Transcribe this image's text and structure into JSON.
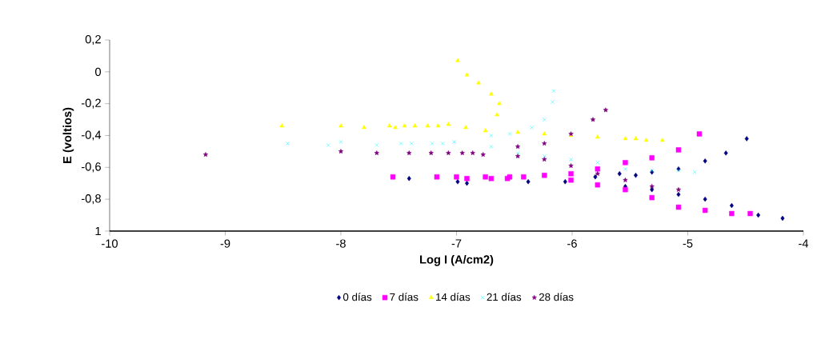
{
  "chart_data": {
    "type": "scatter",
    "xlabel": "Log I (A/cm2)",
    "ylabel": "E (voltios)",
    "xlim": [
      -10,
      -4
    ],
    "xticks": [
      -10,
      -9,
      -8,
      -7,
      -6,
      -5,
      -4
    ],
    "ylim": [
      -1,
      0.2
    ],
    "yticks": [
      {
        "value": -1,
        "label": "1"
      },
      {
        "value": -0.8,
        "label": "-0,8"
      },
      {
        "value": -0.6,
        "label": "-0,6"
      },
      {
        "value": -0.4,
        "label": "-0,4"
      },
      {
        "value": -0.2,
        "label": "-0,2"
      },
      0,
      {
        "value": 0.2,
        "label": "0,2"
      }
    ],
    "grid": false,
    "legend": "bottom",
    "series": [
      {
        "name": "0 días",
        "color": "#000080",
        "marker": "diamond",
        "x": [
          -7.41,
          -6.99,
          -6.91,
          -6.38,
          -6.06,
          -5.8,
          -5.45,
          -5.59,
          -5.31,
          -5.08,
          -4.85,
          -4.67,
          -4.49,
          -5.54,
          -5.31,
          -5.08,
          -4.85,
          -4.62,
          -4.39,
          -4.18
        ],
        "values": [
          -0.67,
          -0.69,
          -0.7,
          -0.69,
          -0.69,
          -0.66,
          -0.65,
          -0.64,
          -0.63,
          -0.61,
          -0.56,
          -0.51,
          -0.42,
          -0.72,
          -0.74,
          -0.77,
          -0.8,
          -0.84,
          -0.9,
          -0.92
        ]
      },
      {
        "name": "7 días",
        "color": "#ff00ff",
        "marker": "square",
        "x": [
          -7.55,
          -7.17,
          -7.0,
          -6.91,
          -6.75,
          -6.7,
          -6.56,
          -6.54,
          -6.42,
          -6.24,
          -6.01,
          -5.78,
          -5.54,
          -5.31,
          -5.08,
          -4.9,
          -6.01,
          -5.78,
          -5.54,
          -5.31,
          -5.08,
          -4.85,
          -4.62,
          -4.46
        ],
        "values": [
          -0.66,
          -0.66,
          -0.66,
          -0.67,
          -0.66,
          -0.67,
          -0.67,
          -0.66,
          -0.66,
          -0.65,
          -0.64,
          -0.61,
          -0.57,
          -0.54,
          -0.49,
          -0.39,
          -0.68,
          -0.71,
          -0.74,
          -0.79,
          -0.85,
          -0.87,
          -0.89,
          -0.89
        ]
      },
      {
        "name": "14 días",
        "color": "#ffff00",
        "marker": "triangle",
        "x": [
          -8.51,
          -8.0,
          -7.8,
          -7.58,
          -7.53,
          -7.45,
          -7.36,
          -7.25,
          -7.16,
          -7.07,
          -6.65,
          -6.63,
          -6.7,
          -6.81,
          -6.91,
          -6.99,
          -6.92,
          -6.75,
          -6.47,
          -6.24,
          -6.01,
          -5.78,
          -5.54,
          -5.45,
          -5.36,
          -5.22
        ],
        "values": [
          -0.34,
          -0.34,
          -0.35,
          -0.34,
          -0.35,
          -0.34,
          -0.34,
          -0.34,
          -0.34,
          -0.33,
          -0.27,
          -0.2,
          -0.14,
          -0.07,
          -0.02,
          0.07,
          -0.35,
          -0.37,
          -0.38,
          -0.39,
          -0.4,
          -0.41,
          -0.42,
          -0.42,
          -0.43,
          -0.43
        ]
      },
      {
        "name": "21 días",
        "color": "#00ffff",
        "marker": "cross",
        "x": [
          -8.46,
          -8.11,
          -8.0,
          -7.69,
          -7.48,
          -7.39,
          -7.21,
          -7.12,
          -7.02,
          -6.7,
          -6.54,
          -6.35,
          -6.24,
          -6.17,
          -6.16,
          -6.7,
          -6.47,
          -6.24,
          -6.01,
          -5.78,
          -5.54,
          -5.31,
          -5.08,
          -4.94
        ],
        "values": [
          -0.45,
          -0.46,
          -0.44,
          -0.46,
          -0.45,
          -0.45,
          -0.45,
          -0.45,
          -0.44,
          -0.4,
          -0.39,
          -0.35,
          -0.3,
          -0.19,
          -0.12,
          -0.47,
          -0.51,
          -0.53,
          -0.55,
          -0.57,
          -0.61,
          -0.62,
          -0.62,
          -0.63
        ]
      },
      {
        "name": "28 días",
        "color": "#800080",
        "marker": "star",
        "x": [
          -9.17,
          -8.0,
          -7.69,
          -7.41,
          -7.22,
          -7.07,
          -6.95,
          -6.86,
          -6.77,
          -6.47,
          -6.24,
          -6.01,
          -5.82,
          -5.71,
          -6.47,
          -6.24,
          -6.01,
          -5.78,
          -5.54,
          -5.31,
          -5.08
        ],
        "values": [
          -0.52,
          -0.5,
          -0.51,
          -0.51,
          -0.51,
          -0.51,
          -0.51,
          -0.51,
          -0.52,
          -0.47,
          -0.45,
          -0.39,
          -0.3,
          -0.24,
          -0.53,
          -0.55,
          -0.59,
          -0.64,
          -0.68,
          -0.72,
          -0.74
        ]
      }
    ]
  }
}
